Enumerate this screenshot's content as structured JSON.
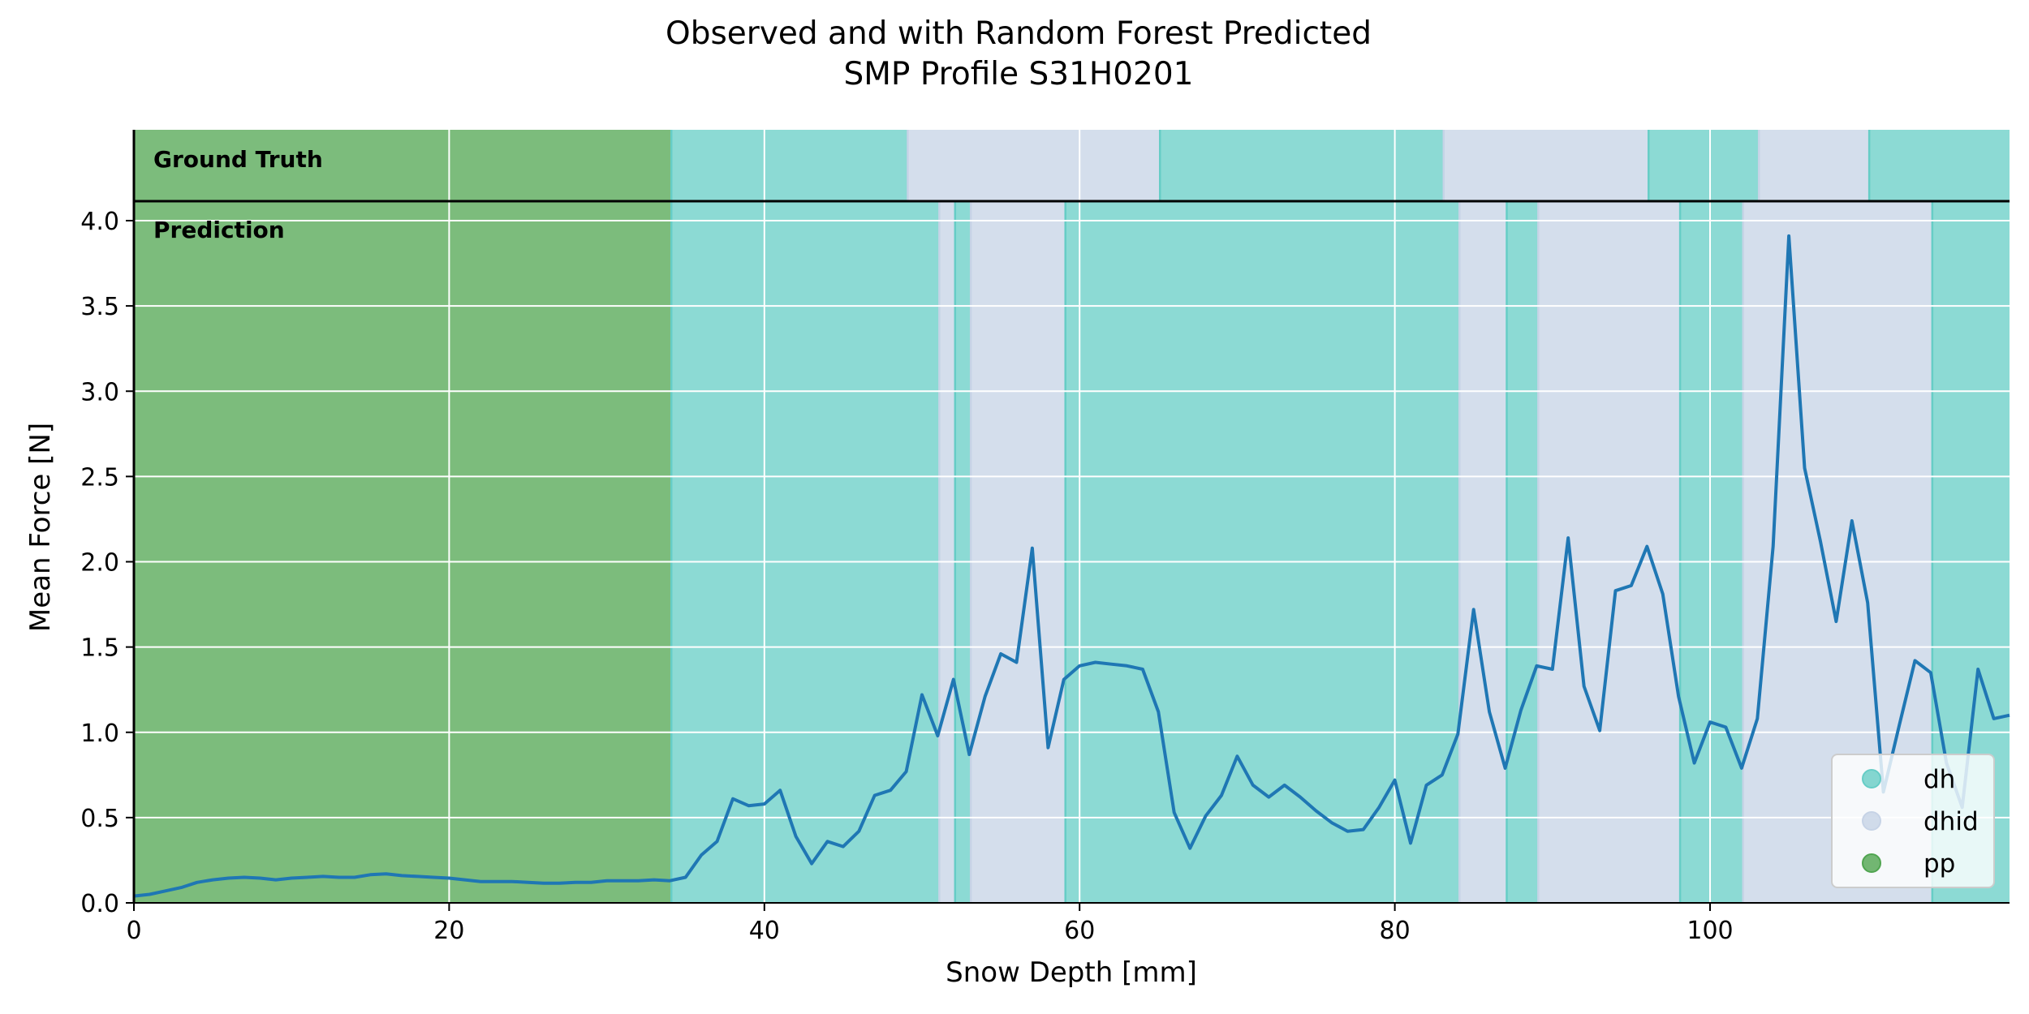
{
  "chart_data": {
    "type": "line",
    "title": [
      "Observed and with Random Forest Predicted",
      "SMP Profile S31H0201"
    ],
    "xlabel": "Snow Depth [mm]",
    "ylabel": "Mean Force [N]",
    "xlim": [
      0,
      119
    ],
    "ylim": [
      0,
      4.1
    ],
    "xticks": [
      0,
      20,
      40,
      60,
      80,
      100
    ],
    "yticks": [
      0.0,
      0.5,
      1.0,
      1.5,
      2.0,
      2.5,
      3.0,
      3.5,
      4.0
    ],
    "grid": true,
    "legend_position": "lower-right",
    "band_labels": {
      "ground_truth": "Ground Truth",
      "prediction": "Prediction"
    },
    "classes": [
      {
        "name": "dh",
        "color": "#66cdc6"
      },
      {
        "name": "dhid",
        "color": "#c6d3e6"
      },
      {
        "name": "pp",
        "color": "#50a550"
      }
    ],
    "line_color": "#1f77b4",
    "ground_truth_segments": [
      {
        "start": 0,
        "end": 34.1,
        "class": "pp"
      },
      {
        "start": 34.1,
        "end": 49.1,
        "class": "dh"
      },
      {
        "start": 49.1,
        "end": 65.1,
        "class": "dhid"
      },
      {
        "start": 65.1,
        "end": 83.1,
        "class": "dh"
      },
      {
        "start": 83.1,
        "end": 96.1,
        "class": "dhid"
      },
      {
        "start": 96.1,
        "end": 103.1,
        "class": "dh"
      },
      {
        "start": 103.1,
        "end": 110.1,
        "class": "dhid"
      },
      {
        "start": 110.1,
        "end": 119,
        "class": "dh"
      }
    ],
    "prediction_segments": [
      {
        "start": 0,
        "end": 34.1,
        "class": "pp"
      },
      {
        "start": 34.1,
        "end": 51.1,
        "class": "dh"
      },
      {
        "start": 51.1,
        "end": 52.1,
        "class": "dhid"
      },
      {
        "start": 52.1,
        "end": 53.1,
        "class": "dh"
      },
      {
        "start": 53.1,
        "end": 59.1,
        "class": "dhid"
      },
      {
        "start": 59.1,
        "end": 84.1,
        "class": "dh"
      },
      {
        "start": 84.1,
        "end": 87.1,
        "class": "dhid"
      },
      {
        "start": 87.1,
        "end": 89.1,
        "class": "dh"
      },
      {
        "start": 89.1,
        "end": 98.1,
        "class": "dhid"
      },
      {
        "start": 98.1,
        "end": 102.1,
        "class": "dh"
      },
      {
        "start": 102.1,
        "end": 114.1,
        "class": "dhid"
      },
      {
        "start": 114.1,
        "end": 119,
        "class": "dh"
      }
    ],
    "series": [
      {
        "x": [
          0,
          1,
          2,
          3,
          4,
          5,
          6,
          7,
          8,
          9,
          10,
          11,
          12,
          13,
          14,
          15,
          16,
          17,
          18,
          19,
          20,
          21,
          22,
          23,
          24,
          25,
          26,
          27,
          28,
          29,
          30,
          31,
          32,
          33,
          34,
          35,
          36,
          37,
          38,
          39,
          40,
          41,
          42,
          43,
          44,
          45,
          46,
          47,
          48,
          49,
          50,
          51,
          52,
          53,
          54,
          55,
          56,
          57,
          58,
          59,
          60,
          61,
          62,
          63,
          64,
          65,
          66,
          67,
          68,
          69,
          70,
          71,
          72,
          73,
          74,
          75,
          76,
          77,
          78,
          79,
          80,
          81,
          82,
          83,
          84,
          85,
          86,
          87,
          88,
          89,
          90,
          91,
          92,
          93,
          94,
          95,
          96,
          97,
          98,
          99,
          100,
          101,
          102,
          103,
          104,
          105,
          106,
          107,
          108,
          109,
          110,
          111,
          112,
          113,
          114,
          115,
          116,
          117,
          118,
          119
        ],
        "values": [
          0.04,
          0.05,
          0.07,
          0.09,
          0.12,
          0.135,
          0.145,
          0.15,
          0.145,
          0.135,
          0.145,
          0.15,
          0.155,
          0.15,
          0.15,
          0.165,
          0.17,
          0.16,
          0.155,
          0.15,
          0.145,
          0.135,
          0.125,
          0.125,
          0.125,
          0.12,
          0.115,
          0.115,
          0.12,
          0.12,
          0.13,
          0.13,
          0.13,
          0.135,
          0.13,
          0.15,
          0.28,
          0.36,
          0.61,
          0.57,
          0.58,
          0.66,
          0.39,
          0.23,
          0.36,
          0.33,
          0.42,
          0.63,
          0.66,
          0.77,
          1.22,
          0.98,
          1.31,
          0.87,
          1.21,
          1.46,
          1.41,
          2.08,
          0.91,
          1.31,
          1.39,
          1.41,
          1.4,
          1.39,
          1.37,
          1.12,
          0.53,
          0.32,
          0.51,
          0.63,
          0.86,
          0.69,
          0.62,
          0.69,
          0.62,
          0.54,
          0.47,
          0.42,
          0.43,
          0.56,
          0.72,
          0.35,
          0.69,
          0.75,
          0.99,
          1.72,
          1.12,
          0.79,
          1.13,
          1.39,
          1.37,
          2.14,
          1.27,
          1.01,
          1.83,
          1.86,
          2.09,
          1.81,
          1.21,
          0.82,
          1.06,
          1.03,
          0.79,
          1.08,
          2.09,
          3.91,
          2.55,
          2.12,
          1.65,
          2.24,
          1.76,
          0.65,
          1.04,
          1.42,
          1.35,
          0.82,
          0.56,
          1.37,
          1.08,
          1.1
        ]
      }
    ]
  }
}
